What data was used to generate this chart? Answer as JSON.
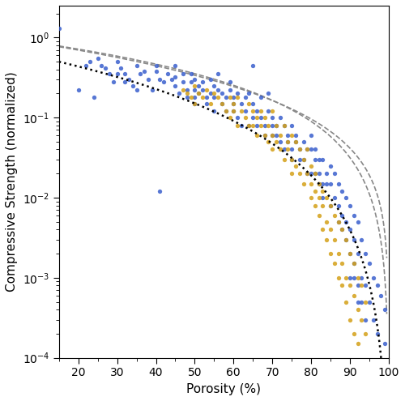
{
  "title": "",
  "xlabel": "Porosity (%)",
  "ylabel": "Compressive Strength (normalized)",
  "xlim": [
    15,
    100
  ],
  "ylim_log": [
    -4,
    0.4
  ],
  "xmin": 15,
  "xmax": 100,
  "power_law_exponent": 2.26,
  "power_law_prefactor": 0.72,
  "closed_cell_prefactor": 1.0,
  "open_cell_prefactor": 0.15,
  "dotted_line_color": "#000000",
  "dashed_line_color": "#888888",
  "blue_color": "#3a5fcd",
  "yellow_color": "#d4a017",
  "marker_size": 6,
  "blue_points": [
    [
      15,
      1.3
    ],
    [
      20,
      0.22
    ],
    [
      22,
      0.45
    ],
    [
      23,
      0.5
    ],
    [
      24,
      0.18
    ],
    [
      25,
      0.55
    ],
    [
      26,
      0.45
    ],
    [
      27,
      0.42
    ],
    [
      28,
      0.35
    ],
    [
      29,
      0.28
    ],
    [
      30,
      0.5
    ],
    [
      30,
      0.35
    ],
    [
      31,
      0.42
    ],
    [
      32,
      0.35
    ],
    [
      32,
      0.28
    ],
    [
      33,
      0.3
    ],
    [
      34,
      0.25
    ],
    [
      35,
      0.45
    ],
    [
      35,
      0.22
    ],
    [
      36,
      0.35
    ],
    [
      37,
      0.38
    ],
    [
      38,
      0.3
    ],
    [
      39,
      0.22
    ],
    [
      40,
      0.45
    ],
    [
      40,
      0.38
    ],
    [
      41,
      0.3
    ],
    [
      41,
      0.012
    ],
    [
      42,
      0.28
    ],
    [
      43,
      0.35
    ],
    [
      44,
      0.3
    ],
    [
      45,
      0.45
    ],
    [
      45,
      0.32
    ],
    [
      45,
      0.25
    ],
    [
      46,
      0.2
    ],
    [
      47,
      0.35
    ],
    [
      47,
      0.28
    ],
    [
      48,
      0.22
    ],
    [
      48,
      0.18
    ],
    [
      49,
      0.28
    ],
    [
      49,
      0.35
    ],
    [
      50,
      0.3
    ],
    [
      50,
      0.22
    ],
    [
      50,
      0.18
    ],
    [
      50,
      0.15
    ],
    [
      51,
      0.25
    ],
    [
      51,
      0.2
    ],
    [
      52,
      0.28
    ],
    [
      52,
      0.22
    ],
    [
      53,
      0.18
    ],
    [
      53,
      0.15
    ],
    [
      54,
      0.2
    ],
    [
      54,
      0.3
    ],
    [
      55,
      0.25
    ],
    [
      55,
      0.18
    ],
    [
      55,
      0.12
    ],
    [
      56,
      0.22
    ],
    [
      56,
      0.35
    ],
    [
      57,
      0.15
    ],
    [
      57,
      0.2
    ],
    [
      58,
      0.18
    ],
    [
      58,
      0.12
    ],
    [
      59,
      0.22
    ],
    [
      59,
      0.28
    ],
    [
      60,
      0.18
    ],
    [
      60,
      0.15
    ],
    [
      60,
      0.12
    ],
    [
      61,
      0.2
    ],
    [
      61,
      0.1
    ],
    [
      62,
      0.15
    ],
    [
      62,
      0.08
    ],
    [
      63,
      0.18
    ],
    [
      63,
      0.12
    ],
    [
      64,
      0.2
    ],
    [
      64,
      0.08
    ],
    [
      65,
      0.15
    ],
    [
      65,
      0.1
    ],
    [
      65,
      0.45
    ],
    [
      66,
      0.12
    ],
    [
      66,
      0.08
    ],
    [
      67,
      0.1
    ],
    [
      67,
      0.18
    ],
    [
      68,
      0.08
    ],
    [
      68,
      0.06
    ],
    [
      69,
      0.12
    ],
    [
      69,
      0.2
    ],
    [
      70,
      0.1
    ],
    [
      70,
      0.08
    ],
    [
      70,
      0.06
    ],
    [
      71,
      0.08
    ],
    [
      71,
      0.06
    ],
    [
      72,
      0.1
    ],
    [
      72,
      0.05
    ],
    [
      73,
      0.08
    ],
    [
      73,
      0.04
    ],
    [
      74,
      0.06
    ],
    [
      74,
      0.05
    ],
    [
      75,
      0.08
    ],
    [
      75,
      0.04
    ],
    [
      75,
      0.03
    ],
    [
      76,
      0.06
    ],
    [
      76,
      0.05
    ],
    [
      77,
      0.04
    ],
    [
      77,
      0.03
    ],
    [
      78,
      0.05
    ],
    [
      78,
      0.03
    ],
    [
      79,
      0.04
    ],
    [
      79,
      0.02
    ],
    [
      80,
      0.06
    ],
    [
      80,
      0.04
    ],
    [
      80,
      0.02
    ],
    [
      81,
      0.04
    ],
    [
      81,
      0.02
    ],
    [
      81,
      0.03
    ],
    [
      82,
      0.03
    ],
    [
      82,
      0.02
    ],
    [
      82,
      0.015
    ],
    [
      83,
      0.03
    ],
    [
      83,
      0.015
    ],
    [
      83,
      0.01
    ],
    [
      84,
      0.02
    ],
    [
      84,
      0.015
    ],
    [
      85,
      0.025
    ],
    [
      85,
      0.015
    ],
    [
      85,
      0.008
    ],
    [
      86,
      0.02
    ],
    [
      86,
      0.01
    ],
    [
      87,
      0.015
    ],
    [
      87,
      0.008
    ],
    [
      87,
      0.005
    ],
    [
      88,
      0.012
    ],
    [
      88,
      0.006
    ],
    [
      88,
      0.004
    ],
    [
      89,
      0.01
    ],
    [
      89,
      0.005
    ],
    [
      89,
      0.003
    ],
    [
      90,
      0.008
    ],
    [
      90,
      0.004
    ],
    [
      90,
      0.002
    ],
    [
      90,
      0.001
    ],
    [
      91,
      0.006
    ],
    [
      91,
      0.003
    ],
    [
      91,
      0.0015
    ],
    [
      91,
      0.001
    ],
    [
      92,
      0.005
    ],
    [
      92,
      0.002
    ],
    [
      92,
      0.0008
    ],
    [
      92,
      0.0005
    ],
    [
      93,
      0.003
    ],
    [
      93,
      0.001
    ],
    [
      93,
      0.0005
    ],
    [
      94,
      0.002
    ],
    [
      94,
      0.0008
    ],
    [
      94,
      0.0003
    ],
    [
      95,
      0.0015
    ],
    [
      95,
      0.0005
    ],
    [
      96,
      0.001
    ],
    [
      96,
      0.0003
    ],
    [
      97,
      0.0008
    ],
    [
      97,
      0.0002
    ],
    [
      98,
      0.0006
    ],
    [
      99,
      0.0004
    ],
    [
      99,
      0.00015
    ]
  ],
  "yellow_points": [
    [
      47,
      0.22
    ],
    [
      48,
      0.2
    ],
    [
      49,
      0.18
    ],
    [
      50,
      0.25
    ],
    [
      50,
      0.15
    ],
    [
      51,
      0.2
    ],
    [
      52,
      0.18
    ],
    [
      53,
      0.22
    ],
    [
      54,
      0.15
    ],
    [
      55,
      0.2
    ],
    [
      56,
      0.18
    ],
    [
      57,
      0.15
    ],
    [
      58,
      0.12
    ],
    [
      59,
      0.18
    ],
    [
      59,
      0.1
    ],
    [
      60,
      0.15
    ],
    [
      60,
      0.12
    ],
    [
      61,
      0.18
    ],
    [
      61,
      0.08
    ],
    [
      62,
      0.12
    ],
    [
      63,
      0.1
    ],
    [
      64,
      0.15
    ],
    [
      64,
      0.08
    ],
    [
      65,
      0.12
    ],
    [
      65,
      0.08
    ],
    [
      66,
      0.1
    ],
    [
      66,
      0.06
    ],
    [
      67,
      0.08
    ],
    [
      67,
      0.12
    ],
    [
      68,
      0.1
    ],
    [
      68,
      0.06
    ],
    [
      69,
      0.08
    ],
    [
      69,
      0.05
    ],
    [
      70,
      0.12
    ],
    [
      70,
      0.06
    ],
    [
      70,
      0.04
    ],
    [
      71,
      0.08
    ],
    [
      71,
      0.05
    ],
    [
      72,
      0.06
    ],
    [
      72,
      0.04
    ],
    [
      73,
      0.08
    ],
    [
      73,
      0.03
    ],
    [
      74,
      0.05
    ],
    [
      74,
      0.04
    ],
    [
      75,
      0.06
    ],
    [
      75,
      0.03
    ],
    [
      75,
      0.02
    ],
    [
      76,
      0.05
    ],
    [
      76,
      0.025
    ],
    [
      77,
      0.04
    ],
    [
      77,
      0.02
    ],
    [
      78,
      0.03
    ],
    [
      78,
      0.015
    ],
    [
      79,
      0.04
    ],
    [
      79,
      0.02
    ],
    [
      80,
      0.025
    ],
    [
      80,
      0.015
    ],
    [
      80,
      0.01
    ],
    [
      81,
      0.02
    ],
    [
      81,
      0.012
    ],
    [
      81,
      0.008
    ],
    [
      82,
      0.015
    ],
    [
      82,
      0.01
    ],
    [
      82,
      0.006
    ],
    [
      83,
      0.012
    ],
    [
      83,
      0.008
    ],
    [
      83,
      0.004
    ],
    [
      84,
      0.01
    ],
    [
      84,
      0.005
    ],
    [
      84,
      0.003
    ],
    [
      85,
      0.008
    ],
    [
      85,
      0.004
    ],
    [
      85,
      0.002
    ],
    [
      86,
      0.006
    ],
    [
      86,
      0.003
    ],
    [
      86,
      0.0015
    ],
    [
      87,
      0.005
    ],
    [
      87,
      0.002
    ],
    [
      87,
      0.001
    ],
    [
      88,
      0.004
    ],
    [
      88,
      0.0015
    ],
    [
      88,
      0.0008
    ],
    [
      89,
      0.003
    ],
    [
      89,
      0.001
    ],
    [
      89,
      0.0005
    ],
    [
      90,
      0.002
    ],
    [
      90,
      0.0008
    ],
    [
      90,
      0.0003
    ],
    [
      91,
      0.0015
    ],
    [
      91,
      0.0006
    ],
    [
      91,
      0.0002
    ],
    [
      92,
      0.001
    ],
    [
      92,
      0.0004
    ],
    [
      92,
      0.00015
    ],
    [
      93,
      0.0008
    ],
    [
      93,
      0.0003
    ],
    [
      94,
      0.0005
    ],
    [
      94,
      0.0002
    ]
  ]
}
